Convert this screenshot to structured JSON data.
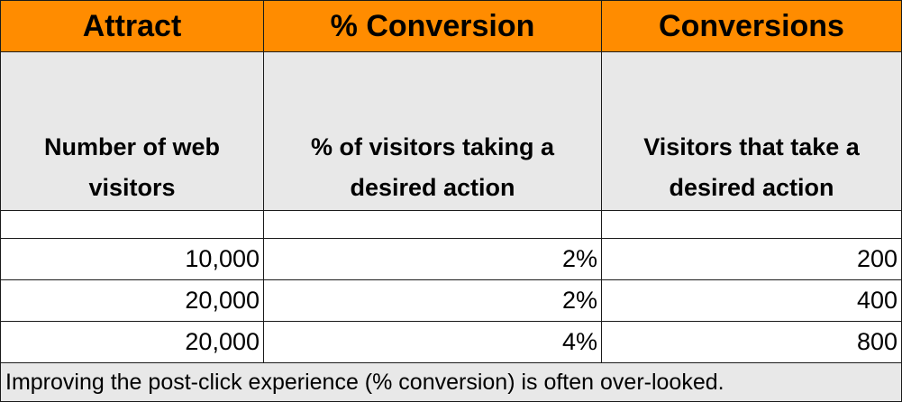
{
  "headers": [
    "Attract",
    "% Conversion",
    "Conversions"
  ],
  "descriptions": [
    "Number of web\nvisitors",
    "% of visitors taking a\ndesired action",
    "Visitors that take a\ndesired action"
  ],
  "rows": [
    [
      "10,000",
      "2%",
      "200"
    ],
    [
      "20,000",
      "2%",
      "400"
    ],
    [
      "20,000",
      "4%",
      "800"
    ]
  ],
  "note": "Improving the post-click experience (% conversion) is often over-looked.",
  "colors": {
    "header_fill": "#ff8c00",
    "desc_fill": "#e8e8e8",
    "note_fill": "#e8e8e8"
  }
}
